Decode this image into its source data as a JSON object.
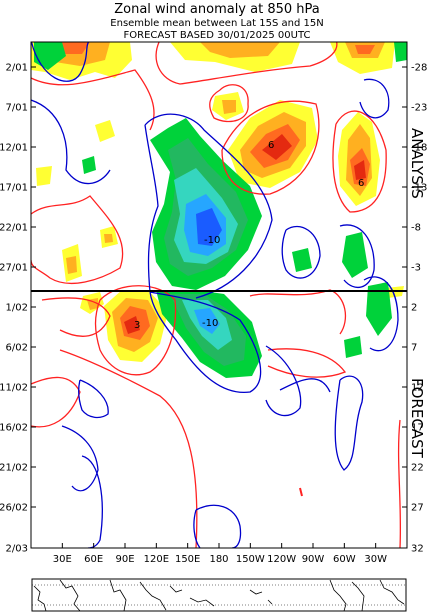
{
  "header": {
    "title": "Zonal wind anomaly at 850 hPa",
    "subtitle": "Ensemble mean between  Lat 15S and 15N",
    "forecast": "FORECAST  BASED 30/01/2025 00UTC"
  },
  "side_labels": {
    "analysis": "ANALYSIS",
    "forecast": "FORECAST"
  },
  "chart_data": {
    "type": "heatmap",
    "title": "Zonal wind anomaly at 850 hPa",
    "x_axis": {
      "ticks": [
        "30E",
        "60E",
        "90E",
        "120E",
        "150E",
        "180",
        "150W",
        "120W",
        "90W",
        "60W",
        "30W"
      ]
    },
    "y_axis_left": {
      "ticks": [
        "2/01",
        "7/01",
        "12/01",
        "17/01",
        "22/01",
        "27/01",
        "1/02",
        "6/02",
        "11/02",
        "16/02",
        "21/02",
        "26/02",
        "2/03"
      ]
    },
    "y_axis_right": {
      "ticks": [
        "-28",
        "-23",
        "-18",
        "-13",
        "-8",
        "-3",
        "2",
        "7",
        "12",
        "17",
        "22",
        "27",
        "32"
      ]
    },
    "analysis_forecast_split": "30/01",
    "features": [
      {
        "sign": "negative",
        "center_lon": "170E",
        "center_date": "22/01",
        "peak_label": "-10"
      },
      {
        "sign": "negative",
        "center_lon": "180",
        "center_date": "1/02",
        "peak_label": "-10"
      },
      {
        "sign": "positive",
        "center_lon": "70W",
        "center_date": "17/01",
        "peak_label": "6"
      },
      {
        "sign": "positive",
        "center_lon": "125W",
        "center_date": "14/01",
        "peak_label": "6"
      },
      {
        "sign": "positive",
        "center_lon": "120E",
        "center_date": "3/02",
        "peak_label": "3"
      }
    ],
    "colors": {
      "pos_1": "#ffff33",
      "pos_2": "#ffb020",
      "pos_3": "#ff6a20",
      "pos_4": "#e42a10",
      "neg_1": "#00d23a",
      "neg_2": "#22b860",
      "neg_3": "#35d6bf",
      "neg_4": "#26a6ff",
      "neg_5": "#1a5cff",
      "pos_contour": "#ff2222",
      "neg_contour": "#0000cc"
    }
  },
  "map": {
    "name": "world-map-strip"
  }
}
